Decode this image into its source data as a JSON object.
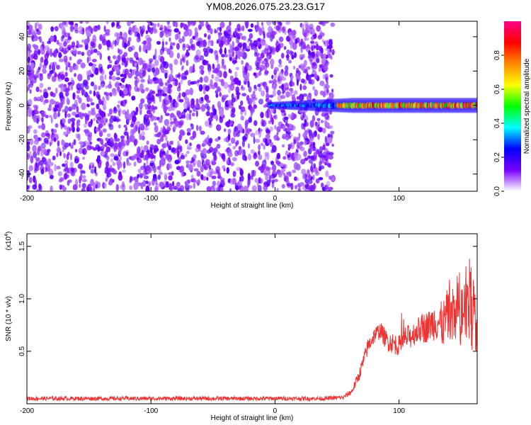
{
  "title": "YM08.2026.075.23.23.G17",
  "chart_data": [
    {
      "type": "heatmap",
      "title": "YM08.2026.075.23.23.G17",
      "xlabel": "Height of straight line (km)",
      "ylabel": "Frequency (Hz)",
      "xlim": [
        -200,
        163
      ],
      "ylim": [
        -50,
        49
      ],
      "xticks": [
        -200,
        -100,
        0,
        100
      ],
      "xtick_labels": [
        "-200",
        "-100",
        "0",
        "100"
      ],
      "yticks": [
        -40,
        -20,
        0,
        20,
        40
      ],
      "ytick_labels": [
        "-40",
        "-20",
        "0",
        "20",
        "40"
      ],
      "noise_region_km": [
        -200,
        45
      ],
      "signal_ridge": {
        "frequency_hz": 0,
        "start_km": -5,
        "end_km": 163,
        "peak_amplitude": 0.95,
        "description_free": true
      },
      "colorbar": {
        "label": "Normalized spectral amplitude",
        "range": [
          0,
          1
        ],
        "ticks": [
          0.0,
          0.2,
          0.4,
          0.6,
          0.8
        ],
        "tick_labels": [
          "0.0",
          "0.2",
          "0.4",
          "0.6",
          "0.8"
        ],
        "colors": [
          "#ffffff",
          "#7700ff",
          "#0000ff",
          "#00ffff",
          "#00ff00",
          "#ffff00",
          "#ff8800",
          "#ff0000",
          "#ff0088"
        ]
      }
    },
    {
      "type": "line",
      "xlabel": "Height of straight line (km)",
      "ylabel": "SNR (10 * v/v)",
      "exponent_label": "(x10",
      "exponent_power": "4",
      "exponent_close": ")",
      "xlim": [
        -200,
        163
      ],
      "ylim": [
        0,
        1.62
      ],
      "xticks": [
        -200,
        -100,
        0,
        100
      ],
      "xtick_labels": [
        "-200",
        "-100",
        "0",
        "100"
      ],
      "yticks": [
        0.5,
        1.0,
        1.5
      ],
      "ytick_labels": [
        "0.5",
        "1.0",
        "1.5"
      ],
      "series": [
        {
          "name": "SNR",
          "color": "#ee3333",
          "x": [
            -200,
            -150,
            -100,
            -50,
            0,
            40,
            55,
            62,
            68,
            75,
            80,
            85,
            90,
            95,
            100,
            105,
            110,
            115,
            120,
            125,
            130,
            135,
            140,
            145,
            150,
            155,
            160,
            163
          ],
          "values": [
            0.05,
            0.05,
            0.05,
            0.05,
            0.05,
            0.05,
            0.06,
            0.12,
            0.28,
            0.55,
            0.65,
            0.7,
            0.6,
            0.58,
            0.55,
            0.62,
            0.65,
            0.7,
            0.72,
            0.75,
            0.8,
            0.75,
            0.85,
            0.8,
            0.9,
            1.0,
            0.95,
            0.7
          ],
          "noise_amplitude": [
            0.02,
            0.02,
            0.02,
            0.02,
            0.02,
            0.02,
            0.02,
            0.03,
            0.06,
            0.08,
            0.08,
            0.08,
            0.1,
            0.1,
            0.1,
            0.12,
            0.12,
            0.12,
            0.15,
            0.15,
            0.2,
            0.22,
            0.28,
            0.3,
            0.35,
            0.4,
            0.45,
            0.3
          ]
        }
      ]
    }
  ]
}
